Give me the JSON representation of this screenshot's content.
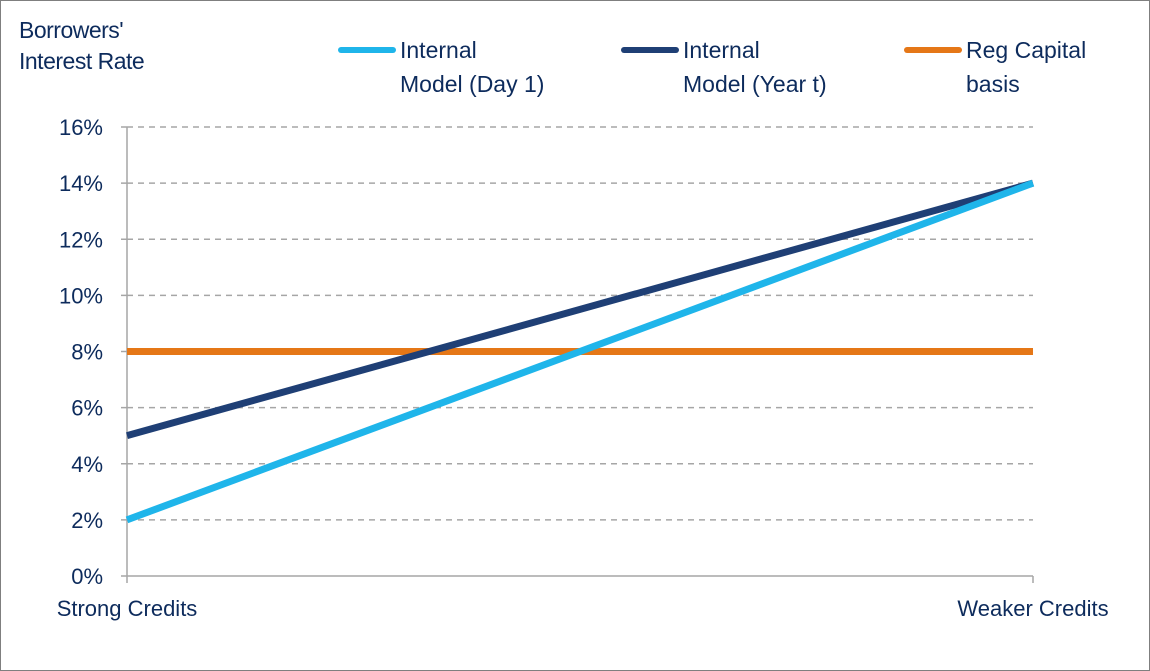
{
  "chart_data": {
    "type": "line",
    "title": "",
    "ylabel": "Borrowers' Interest Rate",
    "xlabel": "",
    "categories": [
      "Strong Credits",
      "Weaker Credits"
    ],
    "ylim": [
      0,
      16
    ],
    "yticks": [
      "0%",
      "2%",
      "4%",
      "6%",
      "8%",
      "10%",
      "12%",
      "14%",
      "16%"
    ],
    "ytick_values": [
      0,
      2,
      4,
      6,
      8,
      10,
      12,
      14,
      16
    ],
    "grid": true,
    "legend_position": "top",
    "series": [
      {
        "name": "Internal Model (Day 1)",
        "color": "#1fb5ea",
        "values": [
          2,
          14
        ]
      },
      {
        "name": "Internal Model (Year t)",
        "color": "#1f3f75",
        "values": [
          5,
          14
        ]
      },
      {
        "name": "Reg Capital basis",
        "color": "#e57717",
        "values": [
          8,
          8
        ]
      }
    ]
  },
  "legend": {
    "items": [
      {
        "label_line1": "Internal",
        "label_line2": "Model (Day 1)"
      },
      {
        "label_line1": "Internal",
        "label_line2": "Model (Year t)"
      },
      {
        "label_line1": "Reg Capital",
        "label_line2": "basis"
      }
    ]
  },
  "axis": {
    "ytitle_line1": "Borrowers'",
    "ytitle_line2": "Interest Rate"
  }
}
